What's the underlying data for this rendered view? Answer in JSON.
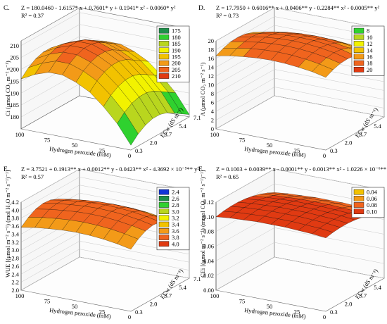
{
  "chart_data": [
    {
      "type": "surface3d",
      "panel": "C.",
      "equation": "Z = 180.0460 - 1.6157* x + 0.7601* y + 0.1941* x² - 0.0060* y²",
      "r2": "R² = 0.37",
      "zlabel": "Ci (μmol CO₂ m⁻² s⁻¹)",
      "xlabel": "Hydrogen peroxide (mM)",
      "ylabel": "ECw (dS m⁻¹)",
      "x_ticks": [
        "100",
        "75",
        "50",
        "25",
        "0"
      ],
      "y_ticks": [
        "0.3",
        "2.0",
        "3.7",
        "5.4",
        "7.1"
      ],
      "z_ticks": [
        "180",
        "185",
        "190",
        "195",
        "200",
        "205",
        "210"
      ],
      "zlim": [
        175,
        212
      ],
      "legend": [
        "175",
        "180",
        "185",
        "190",
        "195",
        "200",
        "205",
        "210"
      ],
      "surface": {
        "x": [
          0,
          12.5,
          25,
          37.5,
          50,
          62.5,
          75,
          87.5,
          100
        ],
        "y": [
          0.3,
          1.15,
          2.0,
          2.85,
          3.7,
          4.55,
          5.4,
          6.25,
          7.1
        ],
        "z": [
          [
            177,
            185,
            191,
            196,
            199,
            201,
            201,
            199,
            196
          ],
          [
            180,
            188,
            194,
            199,
            202,
            204,
            204,
            202,
            199
          ],
          [
            182,
            190,
            196,
            201,
            204,
            206,
            206,
            204,
            201
          ],
          [
            183,
            191,
            197,
            202,
            205,
            207,
            207,
            205,
            202
          ],
          [
            183,
            191,
            197,
            202,
            205,
            207,
            207,
            205,
            202
          ],
          [
            182,
            190,
            196,
            201,
            204,
            206,
            206,
            204,
            201
          ],
          [
            180,
            188,
            194,
            199,
            202,
            204,
            204,
            202,
            199
          ],
          [
            178,
            186,
            192,
            197,
            200,
            202,
            202,
            200,
            197
          ],
          [
            176,
            184,
            190,
            195,
            198,
            200,
            200,
            198,
            195
          ]
        ]
      }
    },
    {
      "type": "surface3d",
      "panel": "D.",
      "equation": "Z = 17.7950 + 0.6016** x + 0.0406** y - 0.2284** x² - 0.0005** y²",
      "r2": "R² = 0.73",
      "zlabel": "A (μmol CO₂ m⁻² s⁻¹)",
      "xlabel": "Hydrogen peroxide (mM)",
      "ylabel": "ECw (dS m⁻¹)",
      "x_ticks": [
        "100",
        "75",
        "50",
        "25",
        "0"
      ],
      "y_ticks": [
        "0.3",
        "2.0",
        "3.7",
        "5.4",
        "7.1"
      ],
      "z_ticks": [
        "0",
        "2",
        "4",
        "6",
        "8",
        "10",
        "12",
        "14",
        "16",
        "18",
        "20"
      ],
      "zlim": [
        0,
        20
      ],
      "legend": [
        "8",
        "10",
        "12",
        "14",
        "16",
        "18",
        "20"
      ],
      "surface": {
        "x": [
          0,
          12.5,
          25,
          37.5,
          50,
          62.5,
          75,
          87.5,
          100
        ],
        "y": [
          0.3,
          1.15,
          2.0,
          2.85,
          3.7,
          4.55,
          5.4,
          6.25,
          7.1
        ],
        "z": [
          [
            16.5,
            17.2,
            17.6,
            17.9,
            18.0,
            17.9,
            17.6,
            17.2,
            16.6
          ],
          [
            17.3,
            18.0,
            18.5,
            18.8,
            18.9,
            18.8,
            18.5,
            18.0,
            17.4
          ],
          [
            17.8,
            18.5,
            19.0,
            19.3,
            19.4,
            19.3,
            19.0,
            18.5,
            17.9
          ],
          [
            17.9,
            18.7,
            19.2,
            19.5,
            19.6,
            19.5,
            19.2,
            18.7,
            18.0
          ],
          [
            17.7,
            18.5,
            19.0,
            19.3,
            19.4,
            19.3,
            19.0,
            18.5,
            17.8
          ],
          [
            17.2,
            17.9,
            18.4,
            18.7,
            18.8,
            18.7,
            18.4,
            17.9,
            17.2
          ],
          [
            16.2,
            17.0,
            17.5,
            17.8,
            17.9,
            17.8,
            17.5,
            17.0,
            16.3
          ],
          [
            15.0,
            15.7,
            16.2,
            16.5,
            16.6,
            16.5,
            16.2,
            15.7,
            15.0
          ],
          [
            13.3,
            14.0,
            14.5,
            14.8,
            14.9,
            14.8,
            14.5,
            14.0,
            13.4
          ]
        ]
      }
    },
    {
      "type": "surface3d",
      "panel": "E.",
      "equation": "Z = 3.7521 + 0.1913** x + 0.0012** y - 0.0423** x² - 4.3692 × 10⁻⁵** y²",
      "r2": "R² = 0.57",
      "zlabel": "WUE [(μmol m⁻² s⁻¹) (mol H₂O m⁻² s⁻¹)⁻¹]",
      "xlabel": "Hydrogen peroxide (mM)",
      "ylabel": "ECw (dS m⁻¹)",
      "x_ticks": [
        "100",
        "75",
        "50",
        "25",
        "0"
      ],
      "y_ticks": [
        "0.3",
        "2.0",
        "3.7",
        "5.4",
        "7.1"
      ],
      "z_ticks": [
        "2.0",
        "2.2",
        "2.4",
        "2.6",
        "2.8",
        "3.0",
        "3.2",
        "3.4",
        "3.6",
        "3.8",
        "4.0",
        "4.2"
      ],
      "zlim": [
        2.0,
        4.2
      ],
      "legend": [
        "2.4",
        "2.6",
        "2.8",
        "3.0",
        "3.2",
        "3.4",
        "3.6",
        "3.8",
        "4.0"
      ],
      "surface": {
        "x": [
          0,
          12.5,
          25,
          37.5,
          50,
          62.5,
          75,
          87.5,
          100
        ],
        "y": [
          0.3,
          1.15,
          2.0,
          2.85,
          3.7,
          4.55,
          5.4,
          6.25,
          7.1
        ],
        "z": [
          [
            3.55,
            3.62,
            3.67,
            3.7,
            3.71,
            3.7,
            3.67,
            3.63,
            3.57
          ],
          [
            3.7,
            3.77,
            3.82,
            3.85,
            3.86,
            3.85,
            3.82,
            3.78,
            3.72
          ],
          [
            3.8,
            3.87,
            3.92,
            3.95,
            3.96,
            3.95,
            3.92,
            3.88,
            3.82
          ],
          [
            3.84,
            3.91,
            3.96,
            3.99,
            4.0,
            3.99,
            3.96,
            3.92,
            3.86
          ],
          [
            3.82,
            3.89,
            3.94,
            3.97,
            3.98,
            3.97,
            3.94,
            3.9,
            3.84
          ],
          [
            3.74,
            3.81,
            3.86,
            3.89,
            3.9,
            3.89,
            3.86,
            3.82,
            3.76
          ],
          [
            3.6,
            3.67,
            3.72,
            3.75,
            3.76,
            3.75,
            3.72,
            3.68,
            3.62
          ],
          [
            3.4,
            3.47,
            3.52,
            3.55,
            3.56,
            3.55,
            3.52,
            3.48,
            3.42
          ],
          [
            3.15,
            3.22,
            3.27,
            3.3,
            3.31,
            3.3,
            3.27,
            3.23,
            3.17
          ]
        ]
      }
    },
    {
      "type": "surface3d",
      "panel": "F.",
      "equation": "Z = 0.1003 + 0.0039** x - 0.0001** y - 0.0013** x² - 1.0226 × 10⁻⁶** y²",
      "r2": "R² = 0.65",
      "zlabel": "CEi [(μmol m⁻² s⁻¹) (mmol CO₂ m⁻² s⁻¹)⁻¹]",
      "xlabel": "Hydrogen peroxide (mM)",
      "ylabel": "ECw (dS m⁻¹)",
      "x_ticks": [
        "100",
        "75",
        "50",
        "25",
        "0"
      ],
      "y_ticks": [
        "0.3",
        "2.0",
        "3.7",
        "5.4",
        "7.1"
      ],
      "z_ticks": [
        "0.00",
        "0.02",
        "0.04",
        "0.06",
        "0.08",
        "0.10",
        "0.12"
      ],
      "zlim": [
        0,
        0.12
      ],
      "legend": [
        "0.04",
        "0.06",
        "0.08",
        "0.10"
      ],
      "surface": {
        "x": [
          0,
          12.5,
          25,
          37.5,
          50,
          62.5,
          75,
          87.5,
          100
        ],
        "y": [
          0.3,
          1.15,
          2.0,
          2.85,
          3.7,
          4.55,
          5.4,
          6.25,
          7.1
        ],
        "z": [
          [
            0.1,
            0.102,
            0.103,
            0.104,
            0.104,
            0.104,
            0.103,
            0.102,
            0.1
          ],
          [
            0.102,
            0.104,
            0.105,
            0.106,
            0.106,
            0.106,
            0.105,
            0.104,
            0.102
          ],
          [
            0.103,
            0.105,
            0.106,
            0.107,
            0.107,
            0.107,
            0.106,
            0.105,
            0.103
          ],
          [
            0.103,
            0.105,
            0.106,
            0.107,
            0.107,
            0.107,
            0.106,
            0.105,
            0.103
          ],
          [
            0.102,
            0.104,
            0.105,
            0.106,
            0.106,
            0.106,
            0.105,
            0.104,
            0.102
          ],
          [
            0.1,
            0.102,
            0.103,
            0.104,
            0.104,
            0.104,
            0.103,
            0.102,
            0.1
          ],
          [
            0.097,
            0.099,
            0.1,
            0.101,
            0.101,
            0.101,
            0.1,
            0.099,
            0.097
          ],
          [
            0.093,
            0.095,
            0.096,
            0.097,
            0.097,
            0.097,
            0.096,
            0.095,
            0.093
          ],
          [
            0.088,
            0.09,
            0.091,
            0.092,
            0.092,
            0.092,
            0.091,
            0.09,
            0.088
          ]
        ]
      }
    }
  ],
  "palette": [
    "#0a1a8c",
    "#1234d8",
    "#1f8f4a",
    "#2fd12f",
    "#b9d61e",
    "#f2f200",
    "#f2c200",
    "#f39a18",
    "#f0641e",
    "#e03a12"
  ]
}
